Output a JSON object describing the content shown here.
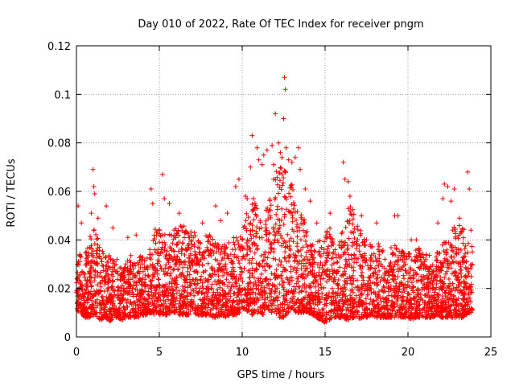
{
  "chart_data": {
    "type": "scatter",
    "title": "Day 010 of 2022, Rate Of TEC Index for receiver pngm",
    "xlabel": "GPS time / hours",
    "ylabel": "ROTI / TECUs",
    "xlim": [
      0,
      25
    ],
    "ylim": [
      0,
      0.12
    ],
    "xticks": [
      "0",
      "5",
      "10",
      "15",
      "20",
      "25"
    ],
    "yticks": [
      "0",
      "0.02",
      "0.04",
      "0.06",
      "0.08",
      "0.1",
      "0.12"
    ],
    "grid": true,
    "marker": "+",
    "color": "#ff0000",
    "series": [
      {
        "name": "ROTI",
        "note": "dense scatter; representative envelope sampled per ~0.25 h",
        "x": [
          0.0,
          0.25,
          0.5,
          0.75,
          1.0,
          1.25,
          1.5,
          1.75,
          2.0,
          2.25,
          2.5,
          2.75,
          3.0,
          3.25,
          3.5,
          3.75,
          4.0,
          4.25,
          4.5,
          4.75,
          5.0,
          5.25,
          5.5,
          5.75,
          6.0,
          6.25,
          6.5,
          6.75,
          7.0,
          7.25,
          7.5,
          7.75,
          8.0,
          8.25,
          8.5,
          8.75,
          9.0,
          9.25,
          9.5,
          9.75,
          10.0,
          10.25,
          10.5,
          10.75,
          11.0,
          11.25,
          11.5,
          11.75,
          12.0,
          12.25,
          12.5,
          12.75,
          13.0,
          13.25,
          13.5,
          13.75,
          14.0,
          14.25,
          14.5,
          14.75,
          15.0,
          15.25,
          15.5,
          15.75,
          16.0,
          16.25,
          16.5,
          16.75,
          17.0,
          17.25,
          17.5,
          17.75,
          18.0,
          18.25,
          18.5,
          18.75,
          19.0,
          19.25,
          19.5,
          19.75,
          20.0,
          20.25,
          20.5,
          20.75,
          21.0,
          21.25,
          21.5,
          21.75,
          22.0,
          22.25,
          22.5,
          22.75,
          23.0,
          23.25,
          23.5,
          23.75
        ],
        "low": [
          0.011,
          0.01,
          0.008,
          0.008,
          0.009,
          0.008,
          0.007,
          0.008,
          0.006,
          0.008,
          0.008,
          0.007,
          0.008,
          0.008,
          0.008,
          0.008,
          0.009,
          0.009,
          0.01,
          0.009,
          0.009,
          0.009,
          0.009,
          0.01,
          0.01,
          0.009,
          0.009,
          0.009,
          0.01,
          0.009,
          0.009,
          0.009,
          0.009,
          0.008,
          0.008,
          0.009,
          0.008,
          0.009,
          0.009,
          0.009,
          0.012,
          0.011,
          0.009,
          0.009,
          0.01,
          0.009,
          0.012,
          0.01,
          0.01,
          0.008,
          0.008,
          0.01,
          0.012,
          0.01,
          0.01,
          0.01,
          0.01,
          0.009,
          0.008,
          0.007,
          0.006,
          0.007,
          0.008,
          0.008,
          0.008,
          0.007,
          0.007,
          0.008,
          0.007,
          0.008,
          0.008,
          0.009,
          0.008,
          0.008,
          0.008,
          0.008,
          0.008,
          0.008,
          0.008,
          0.008,
          0.008,
          0.007,
          0.008,
          0.008,
          0.008,
          0.008,
          0.008,
          0.009,
          0.008,
          0.008,
          0.008,
          0.008,
          0.008,
          0.008,
          0.009,
          0.01
        ],
        "high": [
          0.038,
          0.036,
          0.034,
          0.04,
          0.045,
          0.042,
          0.038,
          0.034,
          0.036,
          0.032,
          0.033,
          0.03,
          0.031,
          0.034,
          0.032,
          0.035,
          0.033,
          0.032,
          0.038,
          0.045,
          0.046,
          0.042,
          0.044,
          0.045,
          0.045,
          0.046,
          0.046,
          0.044,
          0.044,
          0.042,
          0.042,
          0.043,
          0.043,
          0.04,
          0.039,
          0.039,
          0.04,
          0.041,
          0.041,
          0.043,
          0.043,
          0.052,
          0.058,
          0.057,
          0.053,
          0.048,
          0.056,
          0.063,
          0.068,
          0.07,
          0.07,
          0.066,
          0.063,
          0.056,
          0.051,
          0.05,
          0.042,
          0.038,
          0.04,
          0.04,
          0.042,
          0.046,
          0.042,
          0.036,
          0.043,
          0.052,
          0.055,
          0.054,
          0.048,
          0.042,
          0.04,
          0.04,
          0.037,
          0.039,
          0.037,
          0.036,
          0.037,
          0.038,
          0.037,
          0.035,
          0.035,
          0.036,
          0.036,
          0.037,
          0.037,
          0.034,
          0.032,
          0.035,
          0.037,
          0.042,
          0.046,
          0.046,
          0.047,
          0.046,
          0.043,
          0.038
        ],
        "outliers": [
          [
            0.1,
            0.054
          ],
          [
            0.3,
            0.047
          ],
          [
            0.9,
            0.051
          ],
          [
            1.0,
            0.069
          ],
          [
            1.05,
            0.062
          ],
          [
            1.1,
            0.059
          ],
          [
            1.3,
            0.049
          ],
          [
            1.8,
            0.054
          ],
          [
            2.2,
            0.045
          ],
          [
            3.1,
            0.041
          ],
          [
            3.6,
            0.042
          ],
          [
            4.5,
            0.061
          ],
          [
            4.6,
            0.055
          ],
          [
            5.2,
            0.067
          ],
          [
            5.3,
            0.057
          ],
          [
            5.6,
            0.055
          ],
          [
            6.2,
            0.051
          ],
          [
            7.6,
            0.047
          ],
          [
            8.4,
            0.054
          ],
          [
            8.7,
            0.048
          ],
          [
            9.1,
            0.051
          ],
          [
            9.6,
            0.062
          ],
          [
            9.8,
            0.065
          ],
          [
            10.2,
            0.058
          ],
          [
            10.3,
            0.057
          ],
          [
            10.5,
            0.07
          ],
          [
            10.6,
            0.083
          ],
          [
            10.9,
            0.078
          ],
          [
            11.0,
            0.073
          ],
          [
            11.2,
            0.071
          ],
          [
            11.3,
            0.075
          ],
          [
            11.5,
            0.077
          ],
          [
            11.8,
            0.079
          ],
          [
            11.9,
            0.071
          ],
          [
            12.0,
            0.092
          ],
          [
            12.2,
            0.08
          ],
          [
            12.3,
            0.076
          ],
          [
            12.4,
            0.074
          ],
          [
            12.5,
            0.09
          ],
          [
            12.55,
            0.107
          ],
          [
            12.6,
            0.102
          ],
          [
            12.65,
            0.078
          ],
          [
            12.8,
            0.073
          ],
          [
            13.0,
            0.072
          ],
          [
            13.2,
            0.074
          ],
          [
            13.4,
            0.078
          ],
          [
            13.5,
            0.069
          ],
          [
            13.8,
            0.061
          ],
          [
            14.1,
            0.056
          ],
          [
            14.5,
            0.047
          ],
          [
            15.1,
            0.043
          ],
          [
            15.3,
            0.051
          ],
          [
            16.1,
            0.072
          ],
          [
            16.2,
            0.065
          ],
          [
            16.4,
            0.064
          ],
          [
            16.5,
            0.058
          ],
          [
            17.2,
            0.05
          ],
          [
            18.1,
            0.047
          ],
          [
            19.2,
            0.05
          ],
          [
            19.4,
            0.05
          ],
          [
            20.2,
            0.04
          ],
          [
            20.5,
            0.04
          ],
          [
            21.8,
            0.047
          ],
          [
            22.1,
            0.057
          ],
          [
            22.2,
            0.063
          ],
          [
            22.4,
            0.062
          ],
          [
            22.6,
            0.056
          ],
          [
            22.8,
            0.061
          ],
          [
            23.1,
            0.049
          ],
          [
            23.6,
            0.068
          ],
          [
            23.7,
            0.061
          ],
          [
            23.8,
            0.044
          ]
        ]
      }
    ]
  }
}
